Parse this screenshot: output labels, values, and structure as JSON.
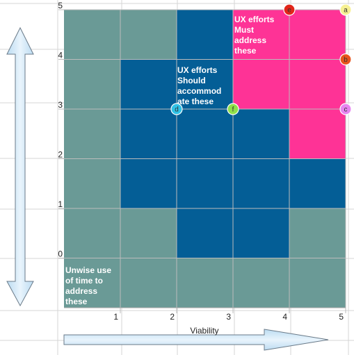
{
  "chart_data": {
    "type": "heatmap",
    "xlabel": "Viability",
    "ylabel": "",
    "x_ticks": [
      "1",
      "2",
      "3",
      "4",
      "5"
    ],
    "y_ticks": [
      "0",
      "1",
      "2",
      "3",
      "4",
      "5"
    ],
    "xlim": [
      0,
      5
    ],
    "ylim": [
      -0.9,
      6
    ],
    "grid": true,
    "zone_colors": {
      "low": "#6a9a96",
      "medium": "#045e96",
      "high": "#fe3396"
    },
    "cells": [
      {
        "row": 6,
        "zones": [
          "low",
          "low",
          "medium",
          "high",
          "high"
        ]
      },
      {
        "row": 5,
        "zones": [
          "low",
          "medium",
          "medium",
          "high",
          "high"
        ]
      },
      {
        "row": 4,
        "zones": [
          "low",
          "medium",
          "medium",
          "medium",
          "high"
        ]
      },
      {
        "row": 3,
        "zones": [
          "low",
          "medium",
          "medium",
          "medium",
          "medium"
        ]
      },
      {
        "row": 2,
        "zones": [
          "low",
          "low",
          "medium",
          "medium",
          "low"
        ]
      },
      {
        "row": 1,
        "zones": [
          "low",
          "low",
          "low",
          "low",
          "low"
        ]
      }
    ],
    "zone_labels": [
      {
        "text": "UX efforts\nMust\naddress\nthese",
        "zone": "high"
      },
      {
        "text": "UX efforts\nShould\naccommod\nate these",
        "zone": "medium"
      },
      {
        "text": "Unwise use\nof time to\naddress\nthese",
        "zone": "low"
      }
    ],
    "points": [
      {
        "label": "a",
        "x": 5,
        "y": 5,
        "color": "#f6f092"
      },
      {
        "label": "b",
        "x": 5,
        "y": 4,
        "color": "#e8541c"
      },
      {
        "label": "c",
        "x": 5,
        "y": 3,
        "color": "#e784f0"
      },
      {
        "label": "d",
        "x": 2,
        "y": 3,
        "color": "#2fc2e6"
      },
      {
        "label": "e",
        "x": 4,
        "y": 5,
        "color": "#e2261a"
      },
      {
        "label": "f",
        "x": 3,
        "y": 3,
        "color": "#8fe04a"
      }
    ]
  }
}
